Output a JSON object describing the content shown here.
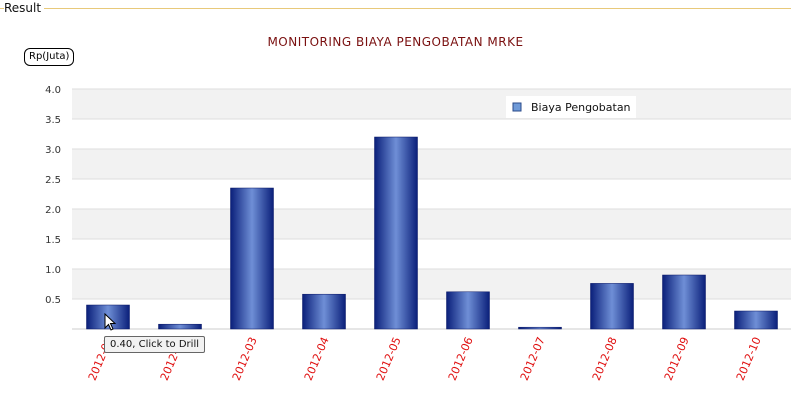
{
  "panel": {
    "label": "Result"
  },
  "tooltip": {
    "text": "0.40, Click to Drill"
  },
  "colors": {
    "bar_dark": "#0a1f7a",
    "bar_light": "#6f8fd6",
    "title": "#7a1010",
    "tick_x": "#e01010"
  },
  "chart_data": {
    "type": "bar",
    "title": "MONITORING BIAYA PENGOBATAN MRKE",
    "ylabel": "Rp(Juta)",
    "xlabel": "",
    "categories": [
      "2012-01",
      "2012-02",
      "2012-03",
      "2012-04",
      "2012-05",
      "2012-06",
      "2012-07",
      "2012-08",
      "2012-09",
      "2012-10"
    ],
    "series": [
      {
        "name": "Biaya Pengobatan",
        "values": [
          0.4,
          0.08,
          2.35,
          0.58,
          3.2,
          0.62,
          0.03,
          0.76,
          0.9,
          0.3
        ]
      }
    ],
    "ylim": [
      0,
      4.0
    ],
    "yticks": [
      "4.0",
      "3.5",
      "3.0",
      "2.5",
      "2.0",
      "1.5",
      "1.0",
      "0.5"
    ],
    "grid": true,
    "legend": "top-right"
  }
}
